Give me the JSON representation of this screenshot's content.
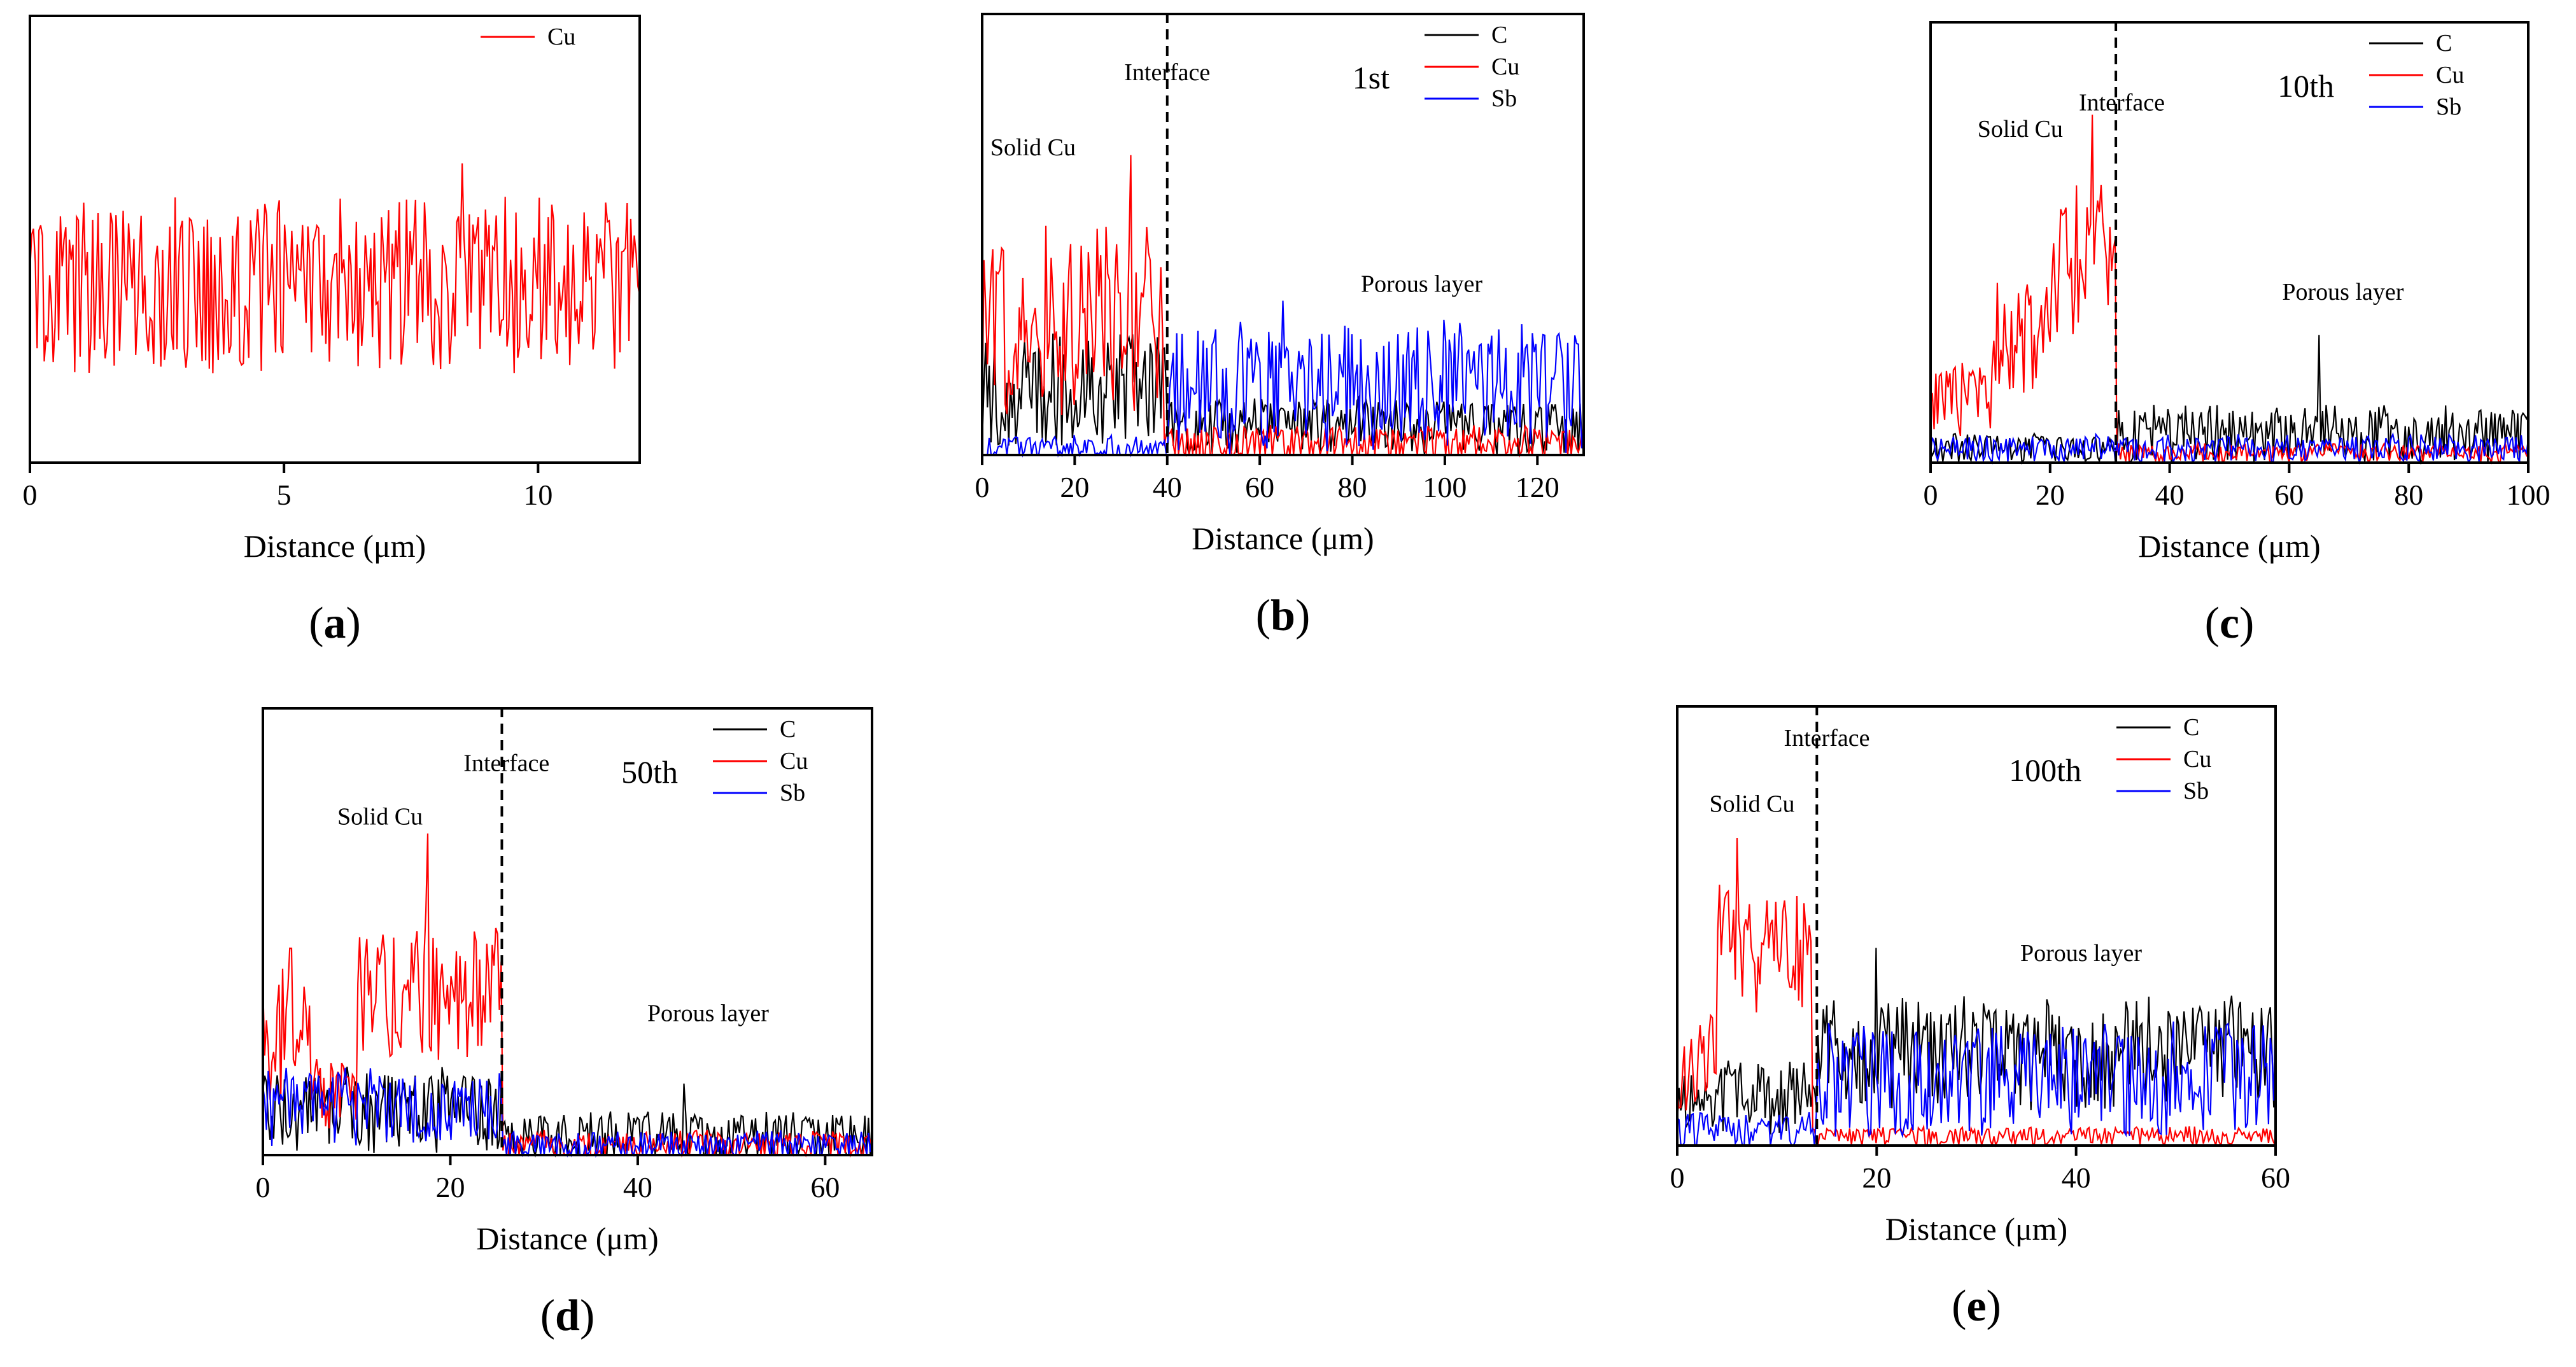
{
  "figure": {
    "colors": {
      "C": "#000000",
      "Cu": "#ff0000",
      "Sb": "#0000ff",
      "axis": "#000000"
    }
  },
  "chart_data": [
    {
      "id": "a",
      "type": "line",
      "panel_label": "(a)",
      "xlabel": "Distance (μm)",
      "ylabel": "",
      "xlim": [
        0,
        12
      ],
      "ylim": [
        0,
        100
      ],
      "xticks": [
        0,
        5,
        10
      ],
      "legend": "top-right",
      "series": [
        {
          "name": "Cu",
          "color": "#ff0000",
          "level": 38,
          "amplitude": 18,
          "spike_at": 8.5,
          "spike_value": 67
        }
      ],
      "annotations": []
    },
    {
      "id": "b",
      "type": "line",
      "panel_label": "(b)",
      "xlabel": "Distance (μm)",
      "ylabel": "",
      "xlim": [
        0,
        130
      ],
      "ylim": [
        0,
        100
      ],
      "xticks": [
        0,
        20,
        40,
        60,
        80,
        100,
        120
      ],
      "cycle_label": "1st",
      "interface_x": 40,
      "legend": "top-right",
      "series": [
        {
          "name": "C",
          "color": "#000000",
          "segments": [
            {
              "from": 0,
              "to": 40,
              "level": 14,
              "amplitude": 12
            },
            {
              "from": 40,
              "to": 130,
              "level": 6,
              "amplitude": 6
            }
          ]
        },
        {
          "name": "Cu",
          "color": "#ff0000",
          "segments": [
            {
              "from": 0,
              "to": 39,
              "level": 28,
              "amplitude": 20
            },
            {
              "from": 39,
              "to": 130,
              "level": 2,
              "amplitude": 4
            }
          ],
          "spike_at": 32,
          "spike_value": 68
        },
        {
          "name": "Sb",
          "color": "#0000ff",
          "segments": [
            {
              "from": 0,
              "to": 40,
              "level": 1,
              "amplitude": 3
            },
            {
              "from": 40,
              "to": 130,
              "level": 14,
              "amplitude": 14
            }
          ],
          "spike_at": 65,
          "spike_value": 35
        }
      ],
      "annotations": [
        {
          "text": "Interface",
          "x": 40,
          "y": 85
        },
        {
          "text": "Solid Cu",
          "x": 11,
          "y": 68
        },
        {
          "text": "Porous layer",
          "x": 95,
          "y": 37
        }
      ]
    },
    {
      "id": "c",
      "type": "line",
      "panel_label": "(c)",
      "xlabel": "Distance (μm)",
      "ylabel": "",
      "xlim": [
        0,
        100
      ],
      "ylim": [
        0,
        100
      ],
      "xticks": [
        0,
        20,
        40,
        60,
        80,
        100
      ],
      "cycle_label": "10th",
      "interface_x": 31,
      "legend": "top-right",
      "series": [
        {
          "name": "C",
          "color": "#000000",
          "segments": [
            {
              "from": 0,
              "to": 31,
              "level": 3,
              "amplitude": 3
            },
            {
              "from": 31,
              "to": 100,
              "level": 6,
              "amplitude": 6
            }
          ],
          "spike_at": 65,
          "spike_value": 29
        },
        {
          "name": "Cu",
          "color": "#ff0000",
          "segments": [
            {
              "from": 0,
              "to": 10,
              "level": 14,
              "amplitude": 8
            },
            {
              "from": 10,
              "to": 20,
              "level": 27,
              "amplitude": 12
            },
            {
              "from": 20,
              "to": 31,
              "level": 44,
              "amplitude": 16
            },
            {
              "from": 31,
              "to": 100,
              "level": 2,
              "amplitude": 2
            }
          ],
          "spike_at": 27,
          "spike_value": 79
        },
        {
          "name": "Sb",
          "color": "#0000ff",
          "segments": [
            {
              "from": 0,
              "to": 100,
              "level": 3,
              "amplitude": 3
            }
          ]
        }
      ],
      "annotations": [
        {
          "text": "Interface",
          "x": 32,
          "y": 80
        },
        {
          "text": "Solid Cu",
          "x": 15,
          "y": 74
        },
        {
          "text": "Porous layer",
          "x": 69,
          "y": 37
        }
      ]
    },
    {
      "id": "d",
      "type": "line",
      "panel_label": "(d)",
      "xlabel": "Distance (μm)",
      "ylabel": "",
      "xlim": [
        0,
        65
      ],
      "ylim": [
        0,
        100
      ],
      "xticks": [
        0,
        20,
        40,
        60
      ],
      "cycle_label": "50th",
      "interface_x": 25.5,
      "legend": "top-right",
      "series": [
        {
          "name": "C",
          "color": "#000000",
          "segments": [
            {
              "from": 0,
              "to": 25.5,
              "level": 9,
              "amplitude": 9
            },
            {
              "from": 25.5,
              "to": 65,
              "level": 4,
              "amplitude": 5
            }
          ],
          "spike_at": 45,
          "spike_value": 16
        },
        {
          "name": "Cu",
          "color": "#ff0000",
          "segments": [
            {
              "from": 0,
              "to": 5,
              "level": 28,
              "amplitude": 16
            },
            {
              "from": 5,
              "to": 10,
              "level": 12,
              "amplitude": 8
            },
            {
              "from": 10,
              "to": 25.5,
              "level": 36,
              "amplitude": 16
            },
            {
              "from": 25.5,
              "to": 65,
              "level": 2,
              "amplitude": 3
            }
          ],
          "spike_at": 17.5,
          "spike_value": 72
        },
        {
          "name": "Sb",
          "color": "#0000ff",
          "segments": [
            {
              "from": 0,
              "to": 25.5,
              "level": 10,
              "amplitude": 8
            },
            {
              "from": 25.5,
              "to": 65,
              "level": 2,
              "amplitude": 3
            }
          ]
        }
      ],
      "annotations": [
        {
          "text": "Interface",
          "x": 26,
          "y": 86
        },
        {
          "text": "Solid Cu",
          "x": 12.5,
          "y": 74
        },
        {
          "text": "Porous layer",
          "x": 47.5,
          "y": 30
        }
      ]
    },
    {
      "id": "e",
      "type": "line",
      "panel_label": "(e)",
      "xlabel": "Distance (μm)",
      "ylabel": "",
      "xlim": [
        0,
        60
      ],
      "ylim": [
        0,
        100
      ],
      "xticks": [
        0,
        20,
        40,
        60
      ],
      "cycle_label": "100th",
      "interface_x": 14,
      "legend": "top-right",
      "series": [
        {
          "name": "C",
          "color": "#000000",
          "segments": [
            {
              "from": 0,
              "to": 14,
              "level": 10,
              "amplitude": 8
            },
            {
              "from": 14,
              "to": 60,
              "level": 20,
              "amplitude": 12
            }
          ],
          "spike_at": 20,
          "spike_value": 45
        },
        {
          "name": "Cu",
          "color": "#ff0000",
          "segments": [
            {
              "from": 0,
              "to": 4,
              "level": 18,
              "amplitude": 10
            },
            {
              "from": 4,
              "to": 13.5,
              "level": 44,
              "amplitude": 14
            },
            {
              "from": 13.5,
              "to": 60,
              "level": 2,
              "amplitude": 2
            }
          ],
          "spike_at": 6,
          "spike_value": 70
        },
        {
          "name": "Sb",
          "color": "#0000ff",
          "segments": [
            {
              "from": 0,
              "to": 14,
              "level": 3,
              "amplitude": 4
            },
            {
              "from": 14,
              "to": 60,
              "level": 14,
              "amplitude": 12
            }
          ],
          "spike_at": 60,
          "spike_value": 34
        }
      ],
      "annotations": [
        {
          "text": "Interface",
          "x": 15,
          "y": 91
        },
        {
          "text": "Solid Cu",
          "x": 7.5,
          "y": 76
        },
        {
          "text": "Porous layer",
          "x": 40.5,
          "y": 42
        }
      ]
    }
  ]
}
